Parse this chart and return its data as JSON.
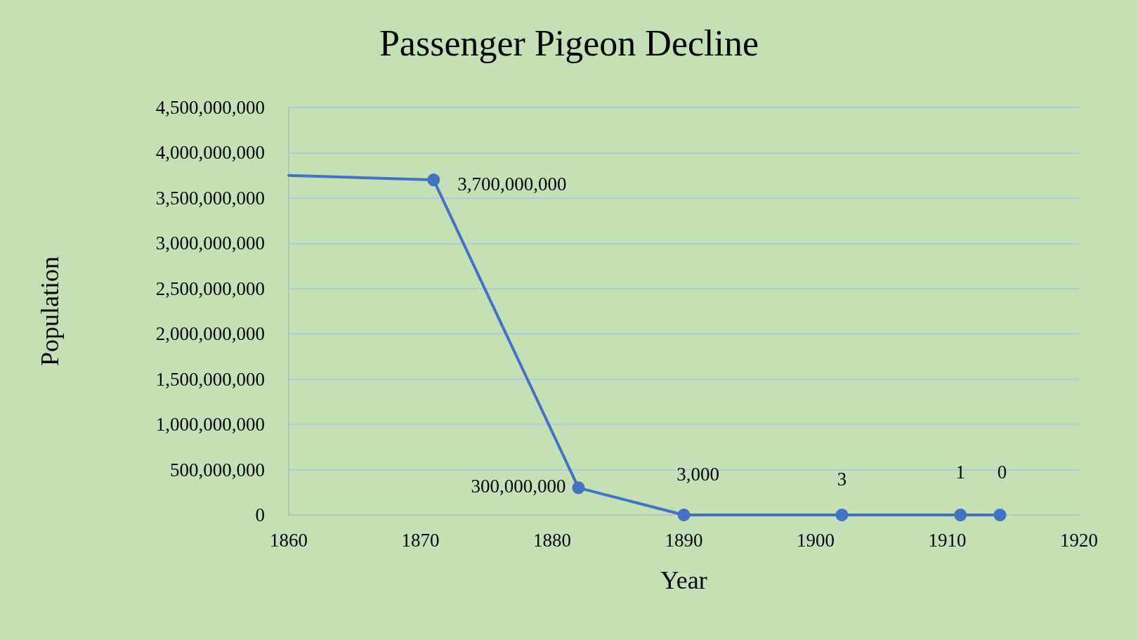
{
  "chart_data": {
    "type": "line",
    "title": "Passenger Pigeon Decline",
    "xlabel": "Year",
    "ylabel": "Population",
    "x": [
      1860,
      1871,
      1882,
      1890,
      1902,
      1911,
      1914
    ],
    "series": [
      {
        "color": "#4472c4",
        "values": [
          3750000000,
          3700000000,
          300000000,
          3000,
          3,
          1,
          0
        ],
        "value_labels": [
          null,
          "3,700,000,000",
          "300,000,000",
          "3,000",
          "3",
          "1",
          "0"
        ]
      }
    ],
    "xlim": [
      1860,
      1920
    ],
    "xticks": [
      1860,
      1870,
      1880,
      1890,
      1900,
      1910,
      1920
    ],
    "ylim": [
      0,
      4500000000
    ],
    "yticks": [
      0,
      {
        "value": 500000000,
        "label": "500,000,000"
      },
      {
        "value": 1000000000,
        "label": "1,000,000,000"
      },
      {
        "value": 1500000000,
        "label": "1,500,000,000"
      },
      {
        "value": 2000000000,
        "label": "2,000,000,000"
      },
      {
        "value": 2500000000,
        "label": "2,500,000,000"
      },
      {
        "value": 3000000000,
        "label": "3,000,000,000"
      },
      {
        "value": 3500000000,
        "label": "3,500,000,000"
      },
      {
        "value": 4000000000,
        "label": "4,000,000,000"
      },
      {
        "value": 4500000000,
        "label": "4,500,000,000"
      }
    ],
    "grid": "y",
    "marker": "circle",
    "line_style": "solid"
  }
}
